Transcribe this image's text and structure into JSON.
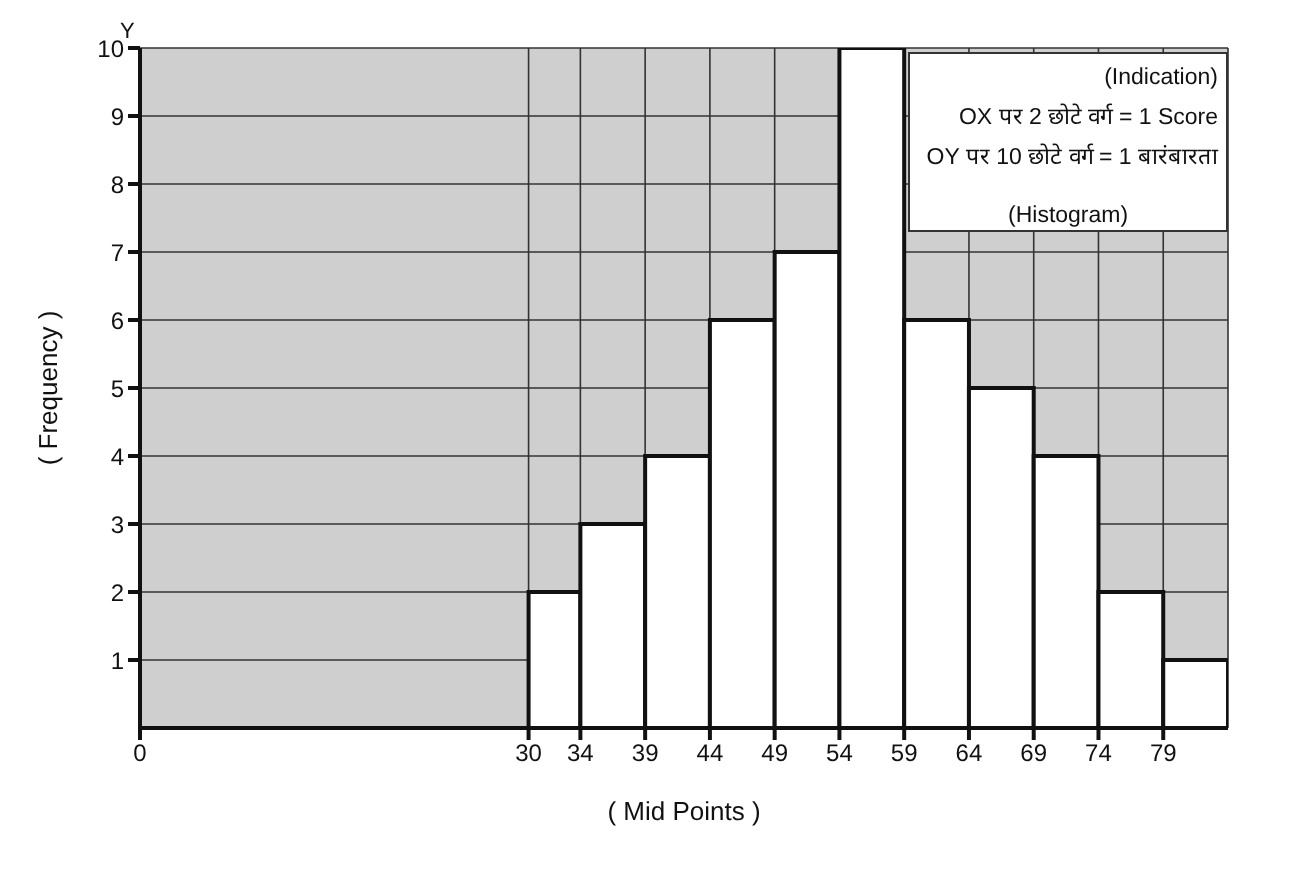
{
  "chart_data": {
    "type": "histogram",
    "xlabel": "( Mid Points )",
    "ylabel": "( Frequency )",
    "bins": [
      30,
      34,
      39,
      44,
      49,
      54,
      59,
      64,
      69,
      74,
      79,
      84
    ],
    "values": [
      2,
      3,
      4,
      6,
      7,
      10,
      6,
      5,
      4,
      2,
      1
    ],
    "color": "#ffffff",
    "xlim": [
      0,
      84
    ],
    "xticks": [
      0,
      30,
      34,
      39,
      44,
      49,
      54,
      59,
      64,
      69,
      74,
      79
    ],
    "ylim": [
      0,
      10
    ],
    "yticks": [
      1,
      2,
      3,
      4,
      5,
      6,
      7,
      8,
      9,
      10
    ],
    "grid": true,
    "annotations": [
      "Y",
      "(Indication)",
      "OX पर 2 छोटे वर्ग = 1 Score",
      "OY पर 10 छोटे वर्ग = 1 बारंबारता",
      "(Histogram)"
    ]
  }
}
